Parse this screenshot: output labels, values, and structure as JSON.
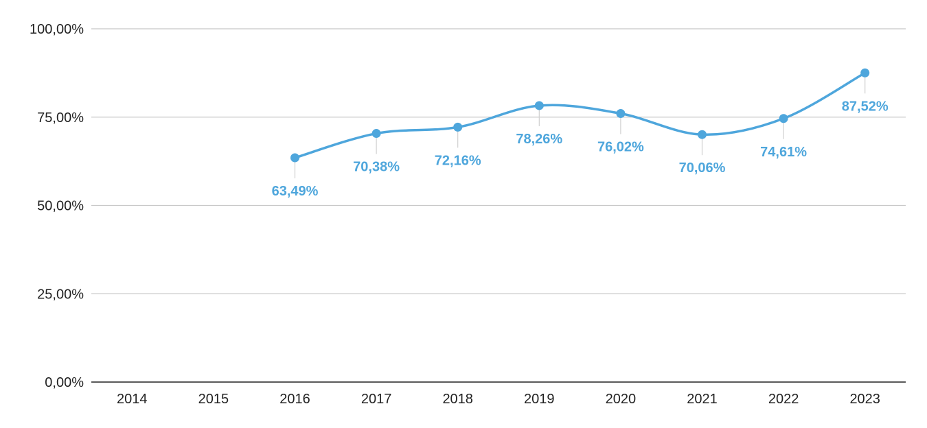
{
  "chart_data": {
    "type": "line",
    "categories": [
      "2014",
      "2015",
      "2016",
      "2017",
      "2018",
      "2019",
      "2020",
      "2021",
      "2022",
      "2023"
    ],
    "values": [
      null,
      null,
      63.49,
      70.38,
      72.16,
      78.26,
      76.02,
      70.06,
      74.61,
      87.52
    ],
    "data_labels": [
      null,
      null,
      "63,49%",
      "70,38%",
      "72,16%",
      "78,26%",
      "76,02%",
      "70,06%",
      "74,61%",
      "87,52%"
    ],
    "label_position": [
      "",
      "",
      "below",
      "below",
      "below",
      "below",
      "below",
      "below",
      "below",
      "below"
    ],
    "y_ticks": [
      0,
      25,
      50,
      75,
      100
    ],
    "y_tick_labels": [
      "0,00%",
      "25,00%",
      "50,00%",
      "75,00%",
      "100,00%"
    ],
    "ylim": [
      0,
      100
    ],
    "grid": true,
    "smooth": true,
    "title": "",
    "xlabel": "",
    "ylabel": "",
    "colors": {
      "series": "#4ea6dc",
      "label": "#4ea6dc",
      "grid": "#c8c8c8",
      "axis": "#222222",
      "text": "#222222"
    }
  }
}
